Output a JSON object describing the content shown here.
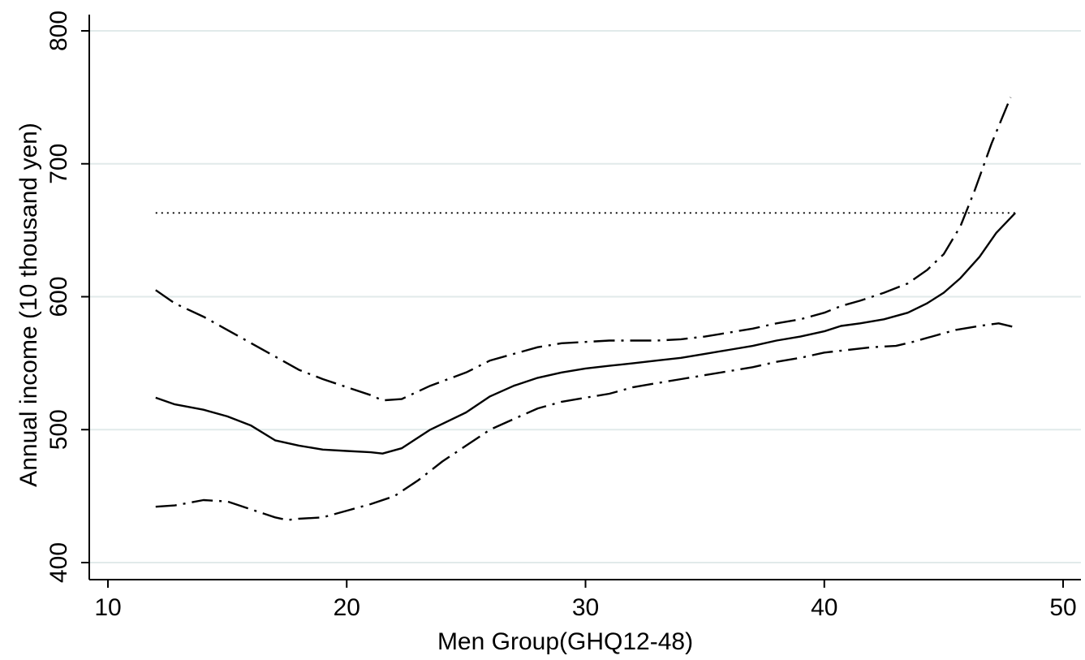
{
  "chart_data": {
    "type": "line",
    "xlabel": "Men Group(GHQ12-48)",
    "ylabel": "Annual income (10 thousand yen)",
    "xlim": [
      10,
      50
    ],
    "ylim": [
      400,
      800
    ],
    "x_ticks": [
      10,
      20,
      30,
      40,
      50
    ],
    "y_ticks": [
      400,
      500,
      600,
      700,
      800
    ],
    "grid": "horizontal",
    "legend": "none",
    "series": [
      {
        "style": "solid",
        "color": "#000000",
        "points": [
          [
            12,
            524
          ],
          [
            12.8,
            519
          ],
          [
            14,
            515
          ],
          [
            15,
            510
          ],
          [
            16,
            503
          ],
          [
            17,
            492
          ],
          [
            18,
            488
          ],
          [
            19,
            485
          ],
          [
            20,
            484
          ],
          [
            21,
            483
          ],
          [
            21.5,
            482
          ],
          [
            22.3,
            486
          ],
          [
            23.5,
            500
          ],
          [
            25,
            513
          ],
          [
            26,
            525
          ],
          [
            27,
            533
          ],
          [
            28,
            539
          ],
          [
            29,
            543
          ],
          [
            30,
            546
          ],
          [
            31,
            548
          ],
          [
            32,
            550
          ],
          [
            33,
            552
          ],
          [
            34,
            554
          ],
          [
            35,
            557
          ],
          [
            36,
            560
          ],
          [
            37,
            563
          ],
          [
            38,
            567
          ],
          [
            39,
            570
          ],
          [
            40,
            574
          ],
          [
            40.7,
            578
          ],
          [
            41.5,
            580
          ],
          [
            42.5,
            583
          ],
          [
            43.5,
            588
          ],
          [
            44.3,
            595
          ],
          [
            45,
            603
          ],
          [
            45.7,
            614
          ],
          [
            46.5,
            630
          ],
          [
            47.2,
            648
          ],
          [
            48,
            663
          ]
        ]
      },
      {
        "style": "dash-dot",
        "color": "#000000",
        "points": [
          [
            12,
            605
          ],
          [
            12.8,
            595
          ],
          [
            14,
            585
          ],
          [
            15,
            575
          ],
          [
            16,
            565
          ],
          [
            17,
            555
          ],
          [
            18,
            545
          ],
          [
            19,
            538
          ],
          [
            20,
            532
          ],
          [
            21,
            526
          ],
          [
            21.5,
            522
          ],
          [
            22.3,
            523
          ],
          [
            23.5,
            533
          ],
          [
            25,
            543
          ],
          [
            26,
            552
          ],
          [
            27,
            557
          ],
          [
            28,
            562
          ],
          [
            29,
            565
          ],
          [
            30,
            566
          ],
          [
            31,
            567
          ],
          [
            32,
            567
          ],
          [
            33,
            567
          ],
          [
            34,
            568
          ],
          [
            35,
            570
          ],
          [
            36,
            573
          ],
          [
            37,
            576
          ],
          [
            38,
            580
          ],
          [
            39,
            583
          ],
          [
            40,
            588
          ],
          [
            40.7,
            593
          ],
          [
            41.5,
            597
          ],
          [
            42.5,
            603
          ],
          [
            43.5,
            610
          ],
          [
            44.3,
            620
          ],
          [
            45,
            632
          ],
          [
            45.7,
            653
          ],
          [
            46.3,
            680
          ],
          [
            47,
            715
          ],
          [
            47.8,
            750
          ]
        ]
      },
      {
        "style": "dash-dot",
        "color": "#000000",
        "points": [
          [
            12,
            442
          ],
          [
            12.8,
            443
          ],
          [
            14,
            447
          ],
          [
            15,
            446
          ],
          [
            16,
            440
          ],
          [
            17,
            434
          ],
          [
            17.5,
            432
          ],
          [
            18,
            433
          ],
          [
            19,
            434
          ],
          [
            20,
            439
          ],
          [
            21,
            444
          ],
          [
            22,
            450
          ],
          [
            23,
            462
          ],
          [
            24,
            476
          ],
          [
            25,
            488
          ],
          [
            26,
            500
          ],
          [
            27,
            508
          ],
          [
            28,
            516
          ],
          [
            29,
            521
          ],
          [
            30,
            524
          ],
          [
            31,
            527
          ],
          [
            32,
            532
          ],
          [
            33,
            535
          ],
          [
            34,
            538
          ],
          [
            35,
            541
          ],
          [
            36,
            544
          ],
          [
            37,
            547
          ],
          [
            38,
            551
          ],
          [
            39,
            554
          ],
          [
            40,
            558
          ],
          [
            41,
            560
          ],
          [
            42,
            562
          ],
          [
            43,
            563
          ],
          [
            43.7,
            566
          ],
          [
            44.5,
            570
          ],
          [
            45.5,
            575
          ],
          [
            46.5,
            578
          ],
          [
            47.3,
            580
          ],
          [
            48,
            577
          ]
        ]
      },
      {
        "style": "dotted",
        "color": "#000000",
        "points": [
          [
            12,
            663
          ],
          [
            48,
            663
          ]
        ]
      }
    ]
  }
}
